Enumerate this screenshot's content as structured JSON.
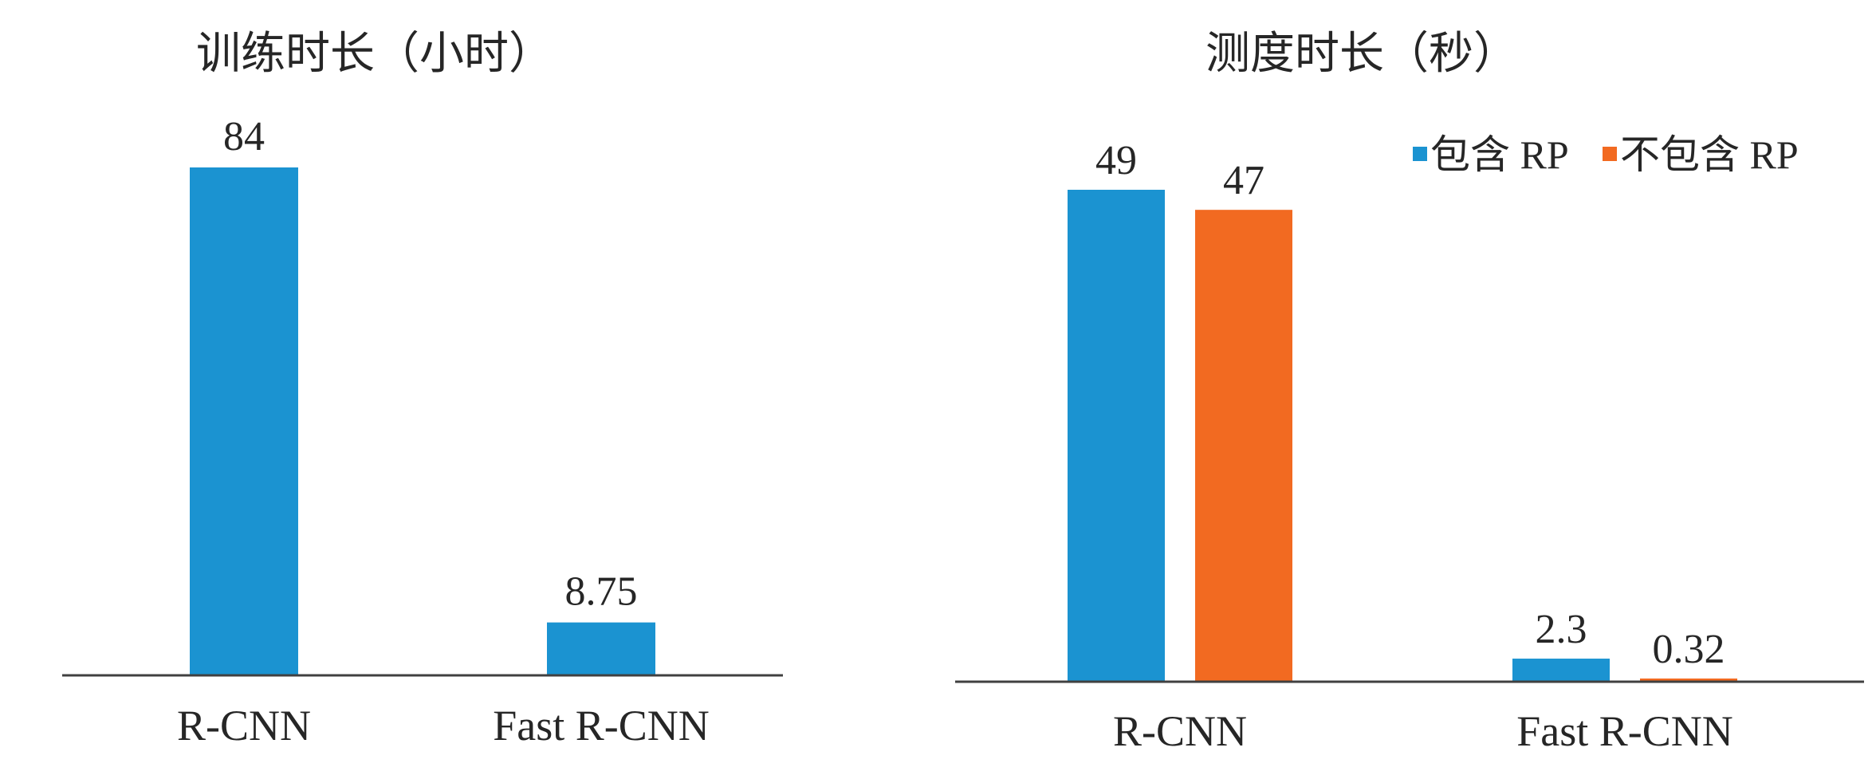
{
  "colors": {
    "series_blue": "#1b93d1",
    "series_orange": "#f26a21",
    "axis": "#404040",
    "text": "#262626"
  },
  "chart_data": [
    {
      "type": "bar",
      "title": "训练时长（小时）",
      "categories": [
        "R-CNN",
        "Fast R-CNN"
      ],
      "series": [
        {
          "name": "训练时长",
          "values": [
            84,
            8.75
          ],
          "value_labels": [
            "84",
            "8.75"
          ]
        }
      ],
      "ylim": [
        0,
        84
      ],
      "grid": false,
      "legend": "none"
    },
    {
      "type": "bar",
      "title": "测度时长（秒）",
      "categories": [
        "R-CNN",
        "Fast R-CNN"
      ],
      "series": [
        {
          "name": "包含 RP",
          "values": [
            49,
            2.3
          ],
          "value_labels": [
            "49",
            "2.3"
          ]
        },
        {
          "name": "不包含 RP",
          "values": [
            47,
            0.32
          ],
          "value_labels": [
            "47",
            "0.32"
          ]
        }
      ],
      "ylim": [
        0,
        49
      ],
      "grid": false,
      "legend": "top-right"
    }
  ]
}
